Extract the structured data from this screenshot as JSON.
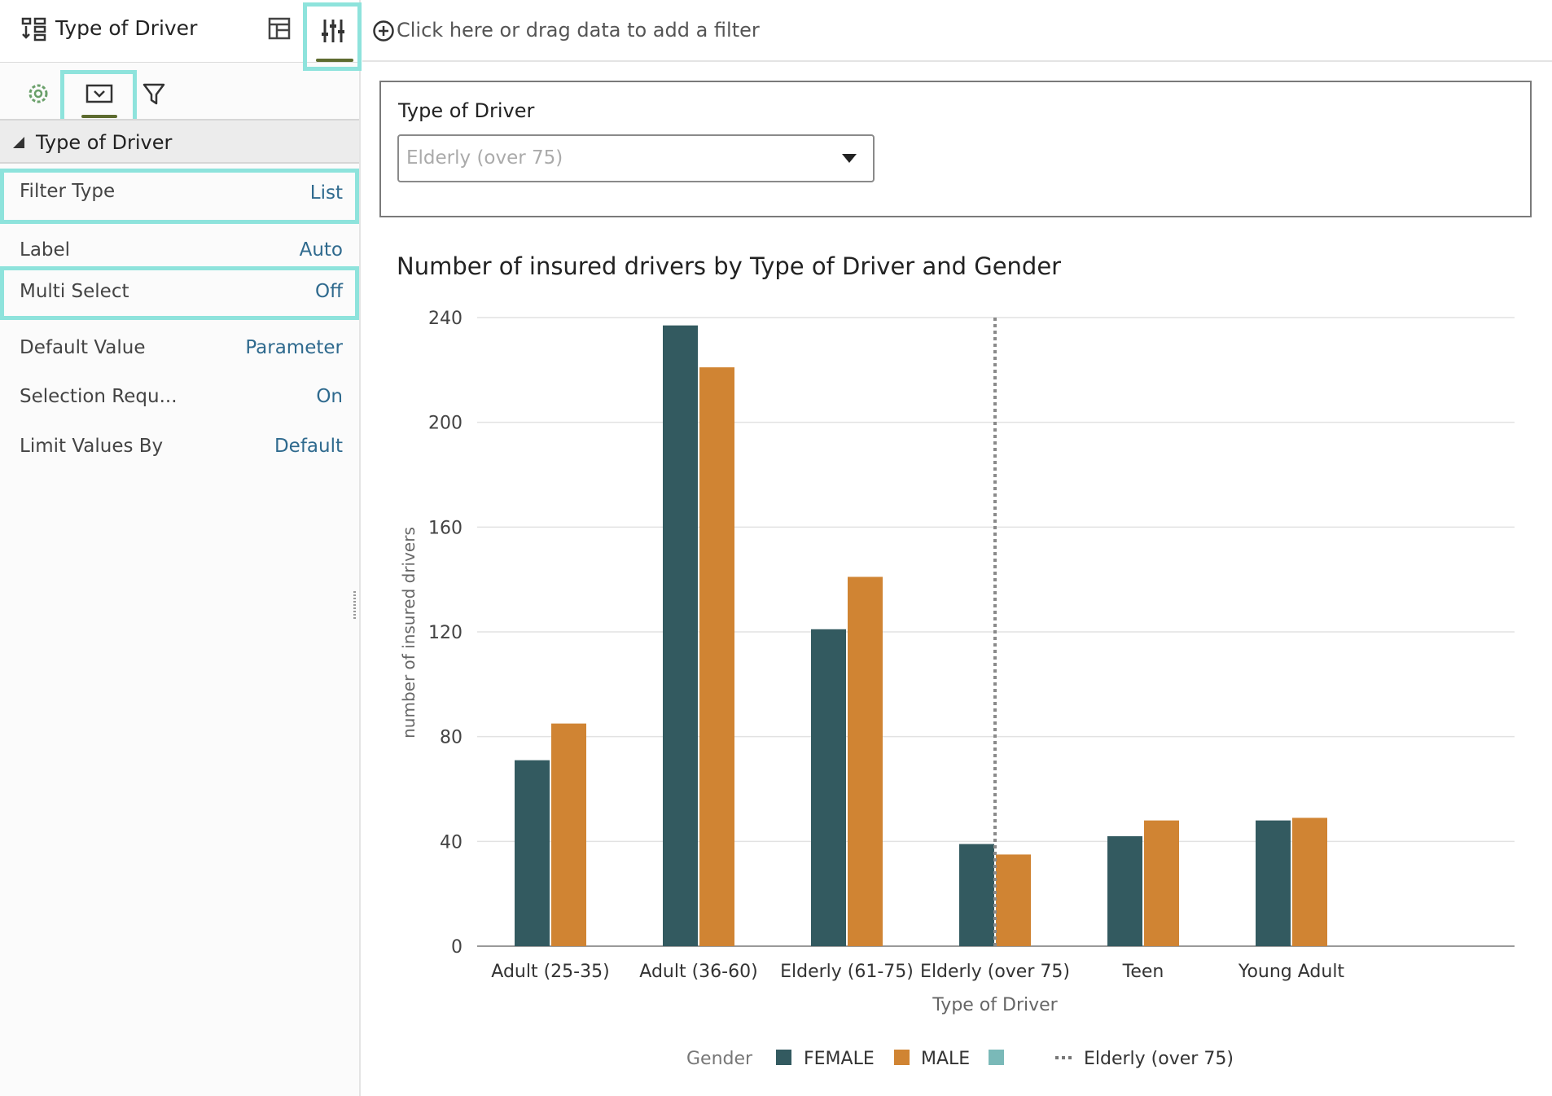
{
  "left_panel": {
    "title": "Type of Driver",
    "section_title": "Type of Driver",
    "properties": [
      {
        "label": "Filter Type",
        "value": "List"
      },
      {
        "label": "Label",
        "value": "Auto"
      },
      {
        "label": "Multi Select",
        "value": "Off"
      },
      {
        "label": "Default Value",
        "value": "Parameter"
      },
      {
        "label": "Selection Requ...",
        "value": "On"
      },
      {
        "label": "Limit Values By",
        "value": "Default"
      }
    ]
  },
  "filter_bar": {
    "hint": "Click here or drag data to add a filter"
  },
  "filter_card": {
    "label": "Type of Driver",
    "selected_value": "Elderly (over 75)"
  },
  "colors": {
    "female": "#335a60",
    "male": "#d08433",
    "third_swatch": "#7ab9b8",
    "highlight": "#8ee3dc",
    "accent_underline": "#5d6b2f"
  },
  "chart_data": {
    "type": "bar",
    "title": "Number of insured drivers by Type of Driver and Gender",
    "xlabel": "Type of Driver",
    "ylabel": "number of insured drivers",
    "categories": [
      "Adult (25-35)",
      "Adult (36-60)",
      "Elderly (61-75)",
      "Elderly (over 75)",
      "Teen",
      "Young Adult"
    ],
    "series": [
      {
        "name": "FEMALE",
        "values": [
          71,
          237,
          121,
          39,
          42,
          48
        ]
      },
      {
        "name": "MALE",
        "values": [
          85,
          221,
          141,
          35,
          48,
          49
        ]
      }
    ],
    "ylim": [
      0,
      240
    ],
    "yticks": [
      0,
      40,
      80,
      120,
      160,
      200,
      240
    ],
    "grid": true,
    "reference_line": {
      "category": "Elderly (over 75)",
      "label": "Elderly (over 75)"
    },
    "legend": {
      "title": "Gender",
      "position": "bottom-center"
    }
  }
}
